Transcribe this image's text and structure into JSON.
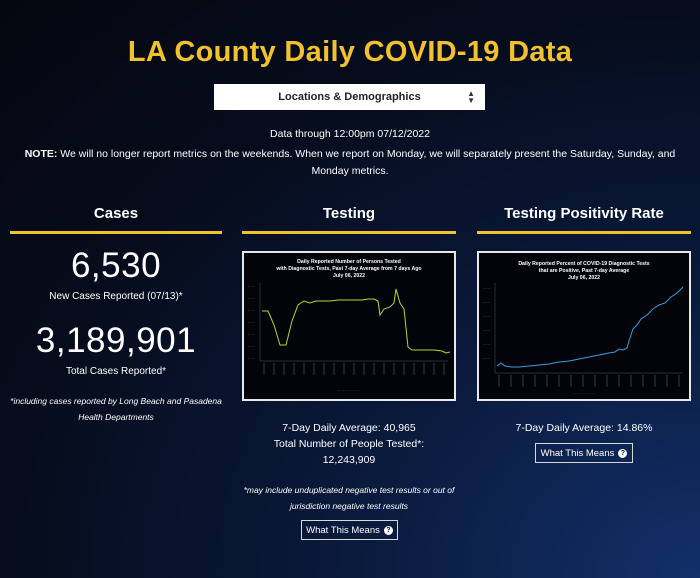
{
  "page": {
    "title": "LA County Daily COVID-19 Data",
    "select_value": "Locations & Demographics",
    "data_through": "Data through 12:00pm 07/12/2022",
    "note_label": "NOTE:",
    "note_text": " We will no longer report metrics on the weekends. When we report on Monday, we will separately present the Saturday, Sunday, and Monday metrics."
  },
  "cases": {
    "heading": "Cases",
    "new_cases": "6,530",
    "new_cases_label": "New Cases Reported (07/13)*",
    "total_cases": "3,189,901",
    "total_cases_label": "Total Cases Reported*",
    "footnote": "*including cases reported by Long Beach and Pasadena Health Departments"
  },
  "testing": {
    "heading": "Testing",
    "chart_title_1": "Daily Reported Number of Persons Tested",
    "chart_title_2": "with Diagnostic Tests, Past 7-day Average from 7 days Ago",
    "chart_title_3": "July 06, 2022",
    "avg": "7-Day Daily Average: 40,965",
    "total_label": "Total Number of People Tested*:",
    "total_value": "12,243,909",
    "footnote": "*may include unduplicated negative test results or out of jurisdiction negative test results",
    "button": "What This Means"
  },
  "positivity": {
    "heading": "Testing Positivity Rate",
    "chart_title_1": "Daily Reported Percent of COVID-19 Diagnostic Tests",
    "chart_title_2": "that are Positive, Past 7-day Average",
    "chart_title_3": "July 06, 2022",
    "avg": "7-Day Daily Average: 14.86%",
    "button": "What This Means"
  },
  "colors": {
    "accent": "#f2c12e",
    "testing_line": "#b8d82a",
    "positivity_line": "#3aa0e0"
  },
  "icons": {
    "select_arrows": "sort-arrows-icon",
    "help": "question-circle-icon"
  }
}
